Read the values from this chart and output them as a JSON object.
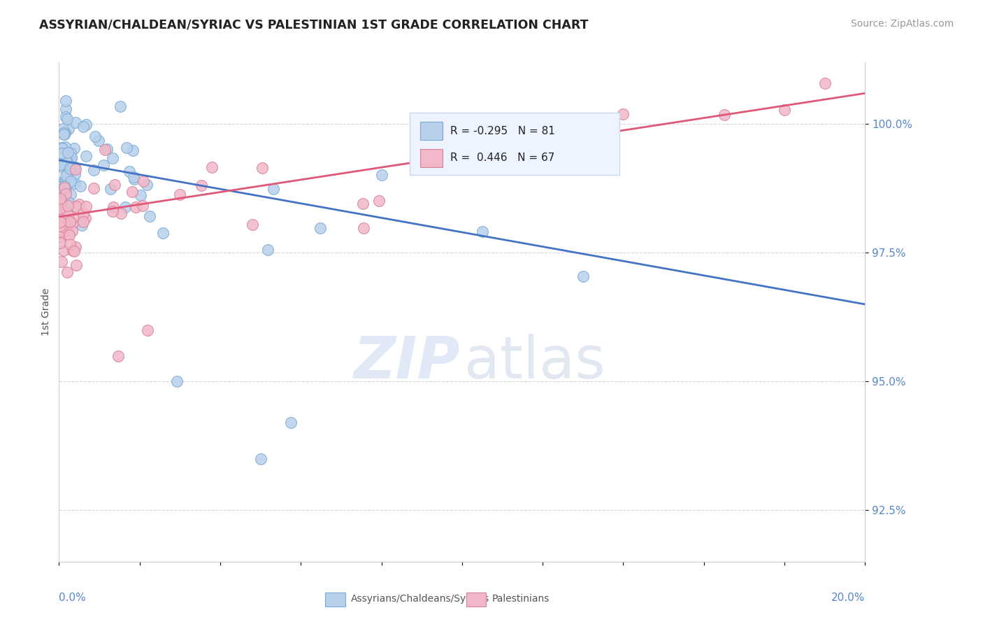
{
  "title": "ASSYRIAN/CHALDEAN/SYRIAC VS PALESTINIAN 1ST GRADE CORRELATION CHART",
  "source": "Source: ZipAtlas.com",
  "ylabel": "1st Grade",
  "xlim": [
    0.0,
    20.0
  ],
  "ylim": [
    91.5,
    101.2
  ],
  "yticks": [
    92.5,
    95.0,
    97.5,
    100.0
  ],
  "ytick_labels": [
    "92.5%",
    "95.0%",
    "97.5%",
    "100.0%"
  ],
  "blue_R": -0.295,
  "blue_N": 81,
  "pink_R": 0.446,
  "pink_N": 67,
  "blue_color": "#b8d0ea",
  "blue_edge": "#7aaad4",
  "pink_color": "#f0b8c8",
  "pink_edge": "#d88098",
  "blue_line_color": "#4472C4",
  "pink_line_color": "#E05878",
  "blue_line_y0": 99.3,
  "blue_line_y20": 96.5,
  "pink_line_y0": 98.2,
  "pink_line_y20": 100.6,
  "watermark_zip_color": "#c8d8ee",
  "watermark_atlas_color": "#c0cce0",
  "legend_facecolor": "#eef4ff",
  "legend_edgecolor": "#c8d8ee"
}
